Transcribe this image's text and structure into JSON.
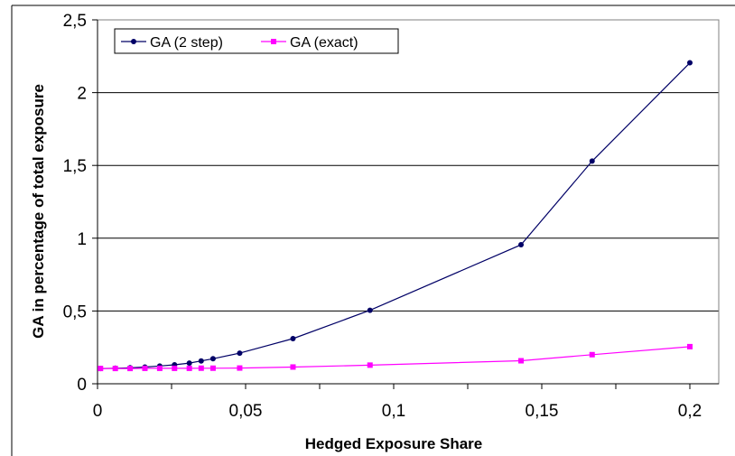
{
  "chart_data": {
    "type": "line",
    "title": "",
    "xlabel": "Hedged Exposure Share",
    "ylabel": "GA in percentage of total exposure",
    "xlim": [
      0,
      0.2
    ],
    "ylim": [
      0,
      2.5
    ],
    "x_ticks": [
      {
        "value": 0,
        "label": "0"
      },
      {
        "value": 0.05,
        "label": "0,05"
      },
      {
        "value": 0.1,
        "label": "0,1"
      },
      {
        "value": 0.15,
        "label": "0,15"
      },
      {
        "value": 0.2,
        "label": "0,2"
      }
    ],
    "y_ticks": [
      {
        "value": 0,
        "label": "0"
      },
      {
        "value": 0.5,
        "label": "0,5"
      },
      {
        "value": 1,
        "label": "1"
      },
      {
        "value": 1.5,
        "label": "1,5"
      },
      {
        "value": 2,
        "label": "2"
      },
      {
        "value": 2.5,
        "label": "2,5"
      }
    ],
    "grid": {
      "horizontal": true,
      "vertical": false
    },
    "legend_position": "top-left",
    "series": [
      {
        "name": "GA (2 step)",
        "color": "#000066",
        "marker": "circle",
        "points": [
          [
            0.001,
            0.105
          ],
          [
            0.006,
            0.107
          ],
          [
            0.011,
            0.11
          ],
          [
            0.016,
            0.115
          ],
          [
            0.021,
            0.122
          ],
          [
            0.026,
            0.13
          ],
          [
            0.031,
            0.142
          ],
          [
            0.035,
            0.157
          ],
          [
            0.039,
            0.172
          ],
          [
            0.048,
            0.21
          ],
          [
            0.066,
            0.31
          ],
          [
            0.092,
            0.505
          ],
          [
            0.143,
            0.955
          ],
          [
            0.167,
            1.53
          ],
          [
            0.2,
            2.205
          ]
        ]
      },
      {
        "name": "GA (exact)",
        "color": "#ff00ff",
        "marker": "square",
        "points": [
          [
            0.001,
            0.105
          ],
          [
            0.006,
            0.105
          ],
          [
            0.011,
            0.105
          ],
          [
            0.016,
            0.106
          ],
          [
            0.021,
            0.106
          ],
          [
            0.026,
            0.106
          ],
          [
            0.031,
            0.106
          ],
          [
            0.035,
            0.107
          ],
          [
            0.039,
            0.107
          ],
          [
            0.048,
            0.108
          ],
          [
            0.066,
            0.115
          ],
          [
            0.092,
            0.128
          ],
          [
            0.143,
            0.158
          ],
          [
            0.167,
            0.2
          ],
          [
            0.2,
            0.255
          ]
        ]
      }
    ]
  }
}
